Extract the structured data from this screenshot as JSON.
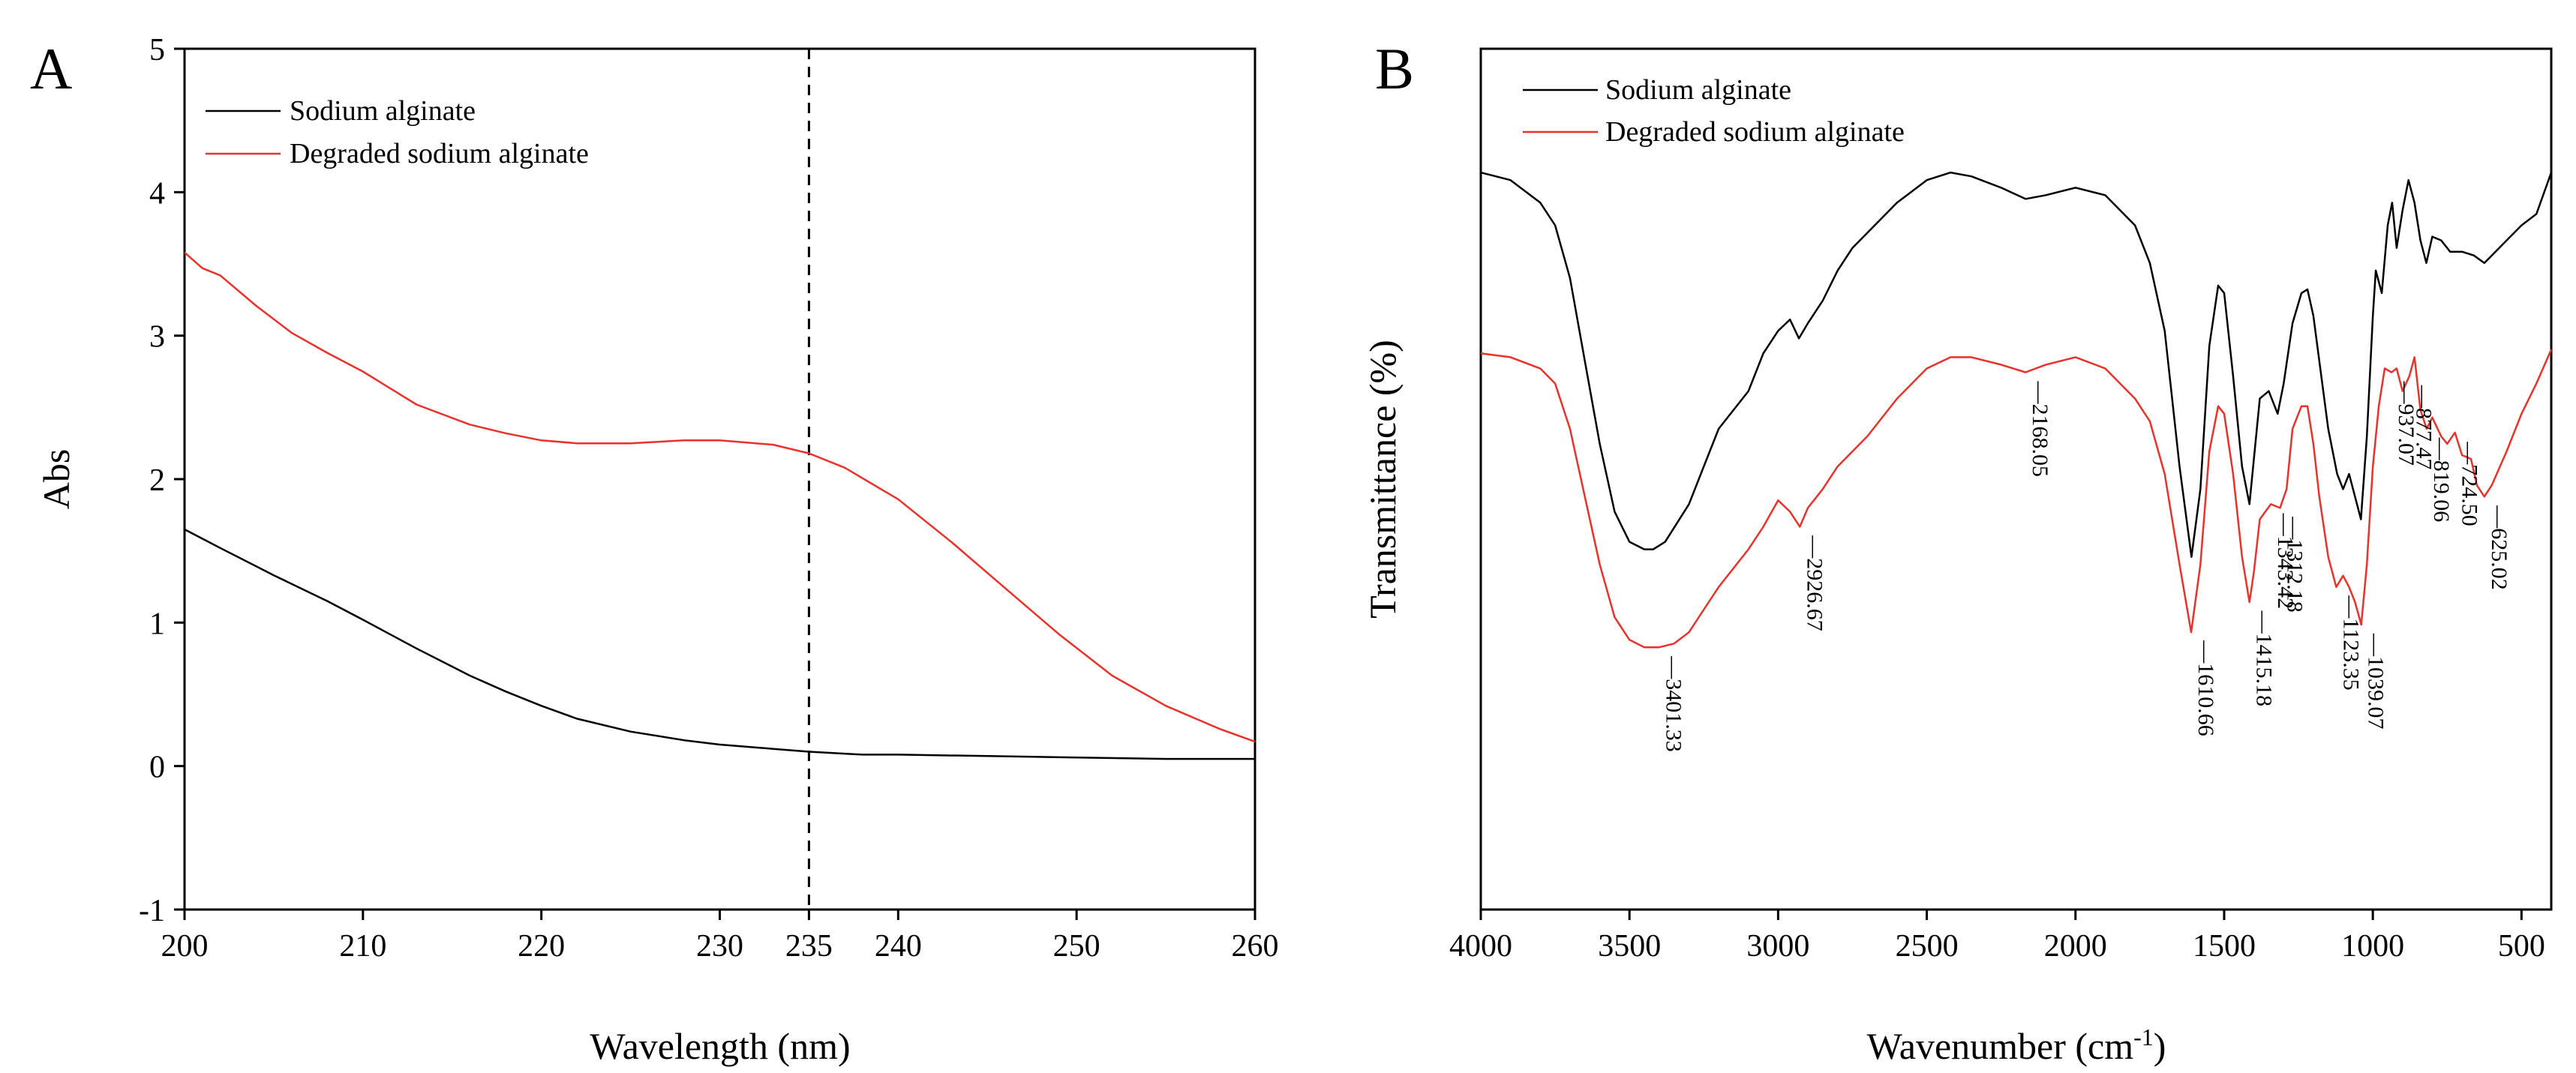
{
  "chart_data": [
    {
      "type": "line",
      "panel_label": "A",
      "xlabel": "Wavelength (nm)",
      "ylabel": "Abs",
      "xlim": [
        200,
        260
      ],
      "ylim": [
        -1,
        5
      ],
      "xticks": [
        200,
        210,
        220,
        230,
        235,
        240,
        250,
        260
      ],
      "yticks": [
        -1,
        0,
        1,
        2,
        3,
        4,
        5
      ],
      "reference_line": {
        "x": 235,
        "style": "dashed"
      },
      "legend_position": "top-left",
      "grid": false,
      "series": [
        {
          "name": "Sodium alginate",
          "color": "#000000",
          "x": [
            200,
            202,
            205,
            208,
            210,
            213,
            216,
            218,
            220,
            222,
            225,
            228,
            230,
            233,
            235,
            238,
            240,
            245,
            250,
            255,
            260
          ],
          "y": [
            1.65,
            1.52,
            1.33,
            1.15,
            1.02,
            0.82,
            0.63,
            0.52,
            0.42,
            0.33,
            0.24,
            0.18,
            0.15,
            0.12,
            0.1,
            0.08,
            0.08,
            0.07,
            0.06,
            0.05,
            0.05
          ]
        },
        {
          "name": "Degraded sodium alginate",
          "color": "#e8322b",
          "x": [
            200,
            201,
            202,
            204,
            206,
            208,
            210,
            213,
            216,
            218,
            220,
            222,
            225,
            228,
            230,
            233,
            235,
            237,
            240,
            243,
            246,
            249,
            252,
            255,
            258,
            260
          ],
          "y": [
            3.58,
            3.47,
            3.42,
            3.21,
            3.02,
            2.88,
            2.75,
            2.52,
            2.38,
            2.32,
            2.27,
            2.25,
            2.25,
            2.27,
            2.27,
            2.24,
            2.18,
            2.08,
            1.86,
            1.56,
            1.24,
            0.92,
            0.63,
            0.42,
            0.26,
            0.17
          ]
        }
      ]
    },
    {
      "type": "line",
      "panel_label": "B",
      "xlabel": "Wavenumber (cm",
      "xlabel_sup": "-1",
      "xlabel_close": ")",
      "ylabel": "Transmittance (%)",
      "xlim": [
        4000,
        400
      ],
      "x_reversed": true,
      "xticks": [
        4000,
        3500,
        3000,
        2500,
        2000,
        1500,
        1000,
        500
      ],
      "y_ticks_shown": false,
      "legend_position": "top-left",
      "grid": false,
      "series": [
        {
          "name": "Sodium alginate",
          "color": "#000000",
          "x": [
            4000,
            3900,
            3800,
            3750,
            3700,
            3650,
            3600,
            3550,
            3500,
            3450,
            3420,
            3380,
            3300,
            3250,
            3200,
            3100,
            3050,
            3000,
            2960,
            2930,
            2900,
            2850,
            2800,
            2750,
            2700,
            2600,
            2500,
            2420,
            2350,
            2250,
            2168,
            2100,
            2000,
            1900,
            1800,
            1750,
            1700,
            1650,
            1610,
            1580,
            1550,
            1520,
            1500,
            1470,
            1440,
            1415,
            1400,
            1380,
            1350,
            1320,
            1300,
            1270,
            1240,
            1220,
            1200,
            1180,
            1150,
            1120,
            1100,
            1080,
            1060,
            1040,
            1020,
            1000,
            990,
            970,
            950,
            935,
            920,
            900,
            880,
            860,
            840,
            820,
            800,
            770,
            740,
            700,
            660,
            625,
            600,
            550,
            500,
            450,
            400
          ],
          "y": [
            57,
            56,
            53,
            50,
            43,
            32,
            21,
            12,
            8,
            7,
            7,
            8,
            13,
            18,
            23,
            28,
            33,
            36,
            37.5,
            35,
            37,
            40,
            44,
            47,
            49,
            53,
            56,
            57,
            56.5,
            55,
            53.5,
            54,
            55,
            54,
            50,
            45,
            36,
            18,
            6,
            15,
            34,
            42,
            41,
            30,
            18,
            13,
            19,
            27,
            28,
            25,
            29,
            37,
            41,
            41.5,
            38,
            32,
            23,
            17,
            15,
            17,
            14,
            11,
            22,
            38,
            44,
            41,
            50,
            53,
            47,
            52,
            56,
            53,
            48,
            45,
            48.5,
            48,
            46.5,
            46.5,
            46,
            45,
            46,
            48,
            50,
            51.5,
            57
          ]
        },
        {
          "name": "Degraded sodium alginate",
          "color": "#e8322b",
          "x": [
            4000,
            3900,
            3800,
            3750,
            3700,
            3650,
            3600,
            3550,
            3500,
            3450,
            3401,
            3350,
            3300,
            3250,
            3200,
            3100,
            3050,
            3000,
            2960,
            2927,
            2900,
            2850,
            2800,
            2750,
            2700,
            2600,
            2500,
            2420,
            2350,
            2250,
            2168,
            2100,
            2000,
            1900,
            1800,
            1750,
            1700,
            1650,
            1611,
            1580,
            1550,
            1520,
            1500,
            1470,
            1440,
            1415,
            1400,
            1380,
            1343,
            1312,
            1290,
            1270,
            1240,
            1220,
            1200,
            1180,
            1150,
            1123,
            1100,
            1080,
            1060,
            1039,
            1020,
            1000,
            980,
            960,
            937,
            920,
            900,
            877,
            860,
            840,
            819,
            800,
            770,
            750,
            724,
            700,
            670,
            650,
            625,
            600,
            550,
            500,
            450,
            400
          ],
          "y": [
            33,
            32.5,
            31,
            29,
            23,
            14,
            5,
            -2,
            -5,
            -6,
            -6,
            -5.5,
            -4,
            -1,
            2,
            7,
            10,
            13.5,
            12,
            10,
            12.5,
            15,
            18,
            20,
            22,
            27,
            31,
            32.5,
            32.5,
            31.5,
            30.5,
            31.5,
            32.5,
            31,
            27,
            24,
            17,
            5,
            -4,
            5,
            20,
            26,
            25,
            17,
            6,
            0,
            4,
            11,
            13,
            12.5,
            15,
            23,
            26,
            26,
            21,
            14,
            6,
            2,
            3.5,
            2,
            0,
            -3,
            5,
            18,
            26,
            31,
            30.5,
            31,
            28,
            30,
            32.5,
            25.5,
            23,
            24.5,
            22,
            21,
            22.5,
            19.5,
            19,
            15.5,
            14,
            15.5,
            20,
            25,
            29,
            33.5
          ]
        }
      ],
      "peak_labels": [
        {
          "label": "3401.33",
          "series": "Degraded sodium alginate"
        },
        {
          "label": "2926.67",
          "series": "Degraded sodium alginate"
        },
        {
          "label": "2168.05",
          "series": "Degraded sodium alginate"
        },
        {
          "label": "1610.66",
          "series": "Degraded sodium alginate"
        },
        {
          "label": "1415.18",
          "series": "Degraded sodium alginate"
        },
        {
          "label": "1343.42",
          "series": "Degraded sodium alginate"
        },
        {
          "label": "1312.18",
          "series": "Degraded sodium alginate"
        },
        {
          "label": "1123.35",
          "series": "Degraded sodium alginate"
        },
        {
          "label": "1039.07",
          "series": "Degraded sodium alginate"
        },
        {
          "label": "937.07",
          "series": "Degraded sodium alginate"
        },
        {
          "label": "877.47",
          "series": "Degraded sodium alginate"
        },
        {
          "label": "819.06",
          "series": "Degraded sodium alginate"
        },
        {
          "label": "724.50",
          "series": "Degraded sodium alginate"
        },
        {
          "label": "625.02",
          "series": "Degraded sodium alginate"
        }
      ]
    }
  ]
}
